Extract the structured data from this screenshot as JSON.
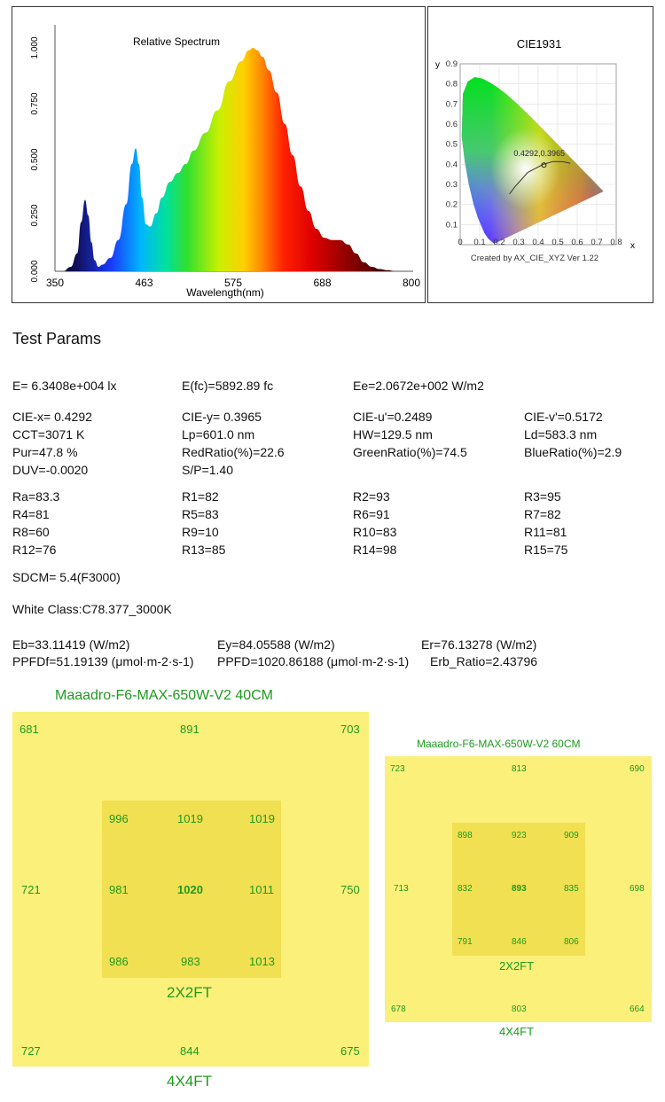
{
  "spectrum": {
    "title": "Relative Spectrum",
    "xlabel": "Wavelength(nm)",
    "x_ticks": [
      "350",
      "463",
      "575",
      "688",
      "800"
    ],
    "y_ticks": [
      "0.000",
      "0.250",
      "0.500",
      "0.750",
      "1.000"
    ]
  },
  "cie": {
    "title": "CIE1931",
    "point_label": "0.4292,0.3965",
    "footer": "Created by AX_CIE_XYZ Ver 1.22",
    "x_axis_label": "x",
    "y_axis_label": "y",
    "x_ticks": [
      "0",
      "0.1",
      "0.2",
      "0.3",
      "0.4",
      "0.5",
      "0.6",
      "0.7",
      "0.8"
    ],
    "y_ticks": [
      "0.1",
      "0.2",
      "0.3",
      "0.4",
      "0.5",
      "0.6",
      "0.7",
      "0.8",
      "0.9"
    ]
  },
  "params": {
    "heading": "Test Params",
    "e_lx": "E=  6.3408e+004 lx",
    "e_fc": "E(fc)=5892.89 fc",
    "ee": "Ee=2.0672e+002 W/m2",
    "cie_x": "CIE-x= 0.4292",
    "cie_y": "CIE-y= 0.3965",
    "cie_u": "CIE-u'=0.2489",
    "cie_v": "CIE-v'=0.5172",
    "cct": "CCT=3071 K",
    "lp": "Lp=601.0 nm",
    "hw": "HW=129.5 nm",
    "ld": "Ld=583.3 nm",
    "pur": "Pur=47.8 %",
    "red_ratio": "RedRatio(%)=22.6",
    "green_ratio": "GreenRatio(%)=74.5",
    "blue_ratio": "BlueRatio(%)=2.9",
    "duv": "DUV=-0.0020",
    "sp": "S/P=1.40",
    "ra": "Ra=83.3",
    "r1": "R1=82",
    "r2": "R2=93",
    "r3": "R3=95",
    "r4": "R4=81",
    "r5": "R5=83",
    "r6": "R6=91",
    "r7": "R7=82",
    "r8": "R8=60",
    "r9": "R9=10",
    "r10": "R10=83",
    "r11": "R11=81",
    "r12": "R12=76",
    "r13": "R13=85",
    "r14": "R14=98",
    "r15": "R15=75",
    "sdcm": "SDCM= 5.4(F3000)",
    "white_class": "White Class:C78.377_3000K",
    "eb": "Eb=33.11419 (W/m2)",
    "ey": "Ey=84.05588 (W/m2)",
    "er": "Er=76.13278 (W/m2)",
    "ppfdf": "PPFDf=51.19139 (μmol·m-2·s-1)",
    "ppfd": "PPFD=1020.86188 (μmol·m-2·s-1)",
    "erb": "Erb_Ratio=2.43796"
  },
  "map40": {
    "title": "Maaadro-F6-MAX-650W-V2  40CM",
    "outer": {
      "tl": "681",
      "tc": "891",
      "tr": "703",
      "ml": "721",
      "mr": "750",
      "bl": "727",
      "bc": "844",
      "br": "675"
    },
    "inner": {
      "r1": [
        "996",
        "1019",
        "1019"
      ],
      "r2": [
        "981",
        "1020",
        "1011"
      ],
      "r3": [
        "986",
        "983",
        "1013"
      ]
    },
    "label_2x2": "2X2FT",
    "label_4x4": "4X4FT"
  },
  "map60": {
    "title": "Maaadro-F6-MAX-650W-V2  60CM",
    "outer": {
      "tl": "723",
      "tc": "813",
      "tr": "690",
      "ml": "713",
      "mr": "698",
      "bl": "678",
      "bc": "803",
      "br": "664"
    },
    "inner": {
      "r1": [
        "898",
        "923",
        "909"
      ],
      "r2": [
        "832",
        "893",
        "835"
      ],
      "r3": [
        "791",
        "846",
        "806"
      ]
    },
    "label_2x2": "2X2FT",
    "label_4x4": "4X4FT"
  },
  "chart_data": [
    {
      "type": "area",
      "title": "Relative Spectrum",
      "xlabel": "Wavelength(nm)",
      "ylabel": "",
      "xlim": [
        350,
        800
      ],
      "ylim": [
        0,
        1
      ],
      "x": [
        350,
        360,
        370,
        378,
        383,
        388,
        392,
        396,
        400,
        405,
        410,
        420,
        430,
        440,
        447,
        452,
        456,
        460,
        465,
        470,
        478,
        485,
        495,
        505,
        515,
        525,
        540,
        555,
        570,
        585,
        595,
        600,
        605,
        612,
        620,
        630,
        640,
        650,
        660,
        670,
        680,
        690,
        700,
        710,
        720,
        730,
        740,
        750,
        760,
        770,
        780,
        800
      ],
      "y": [
        0,
        0,
        0.02,
        0.08,
        0.22,
        0.32,
        0.25,
        0.13,
        0.05,
        0.02,
        0.03,
        0.06,
        0.14,
        0.3,
        0.48,
        0.55,
        0.48,
        0.33,
        0.21,
        0.2,
        0.26,
        0.33,
        0.4,
        0.44,
        0.48,
        0.54,
        0.62,
        0.72,
        0.85,
        0.94,
        0.99,
        1.0,
        0.99,
        0.96,
        0.9,
        0.8,
        0.66,
        0.52,
        0.38,
        0.27,
        0.19,
        0.15,
        0.14,
        0.14,
        0.12,
        0.08,
        0.04,
        0.02,
        0.01,
        0.005,
        0,
        0
      ]
    },
    {
      "type": "scatter",
      "title": "CIE1931",
      "xlabel": "x",
      "ylabel": "y",
      "xlim": [
        0,
        0.8
      ],
      "ylim": [
        0,
        0.9
      ],
      "points": [
        {
          "x": 0.4292,
          "y": 0.3965,
          "label": "0.4292,0.3965"
        }
      ]
    }
  ]
}
